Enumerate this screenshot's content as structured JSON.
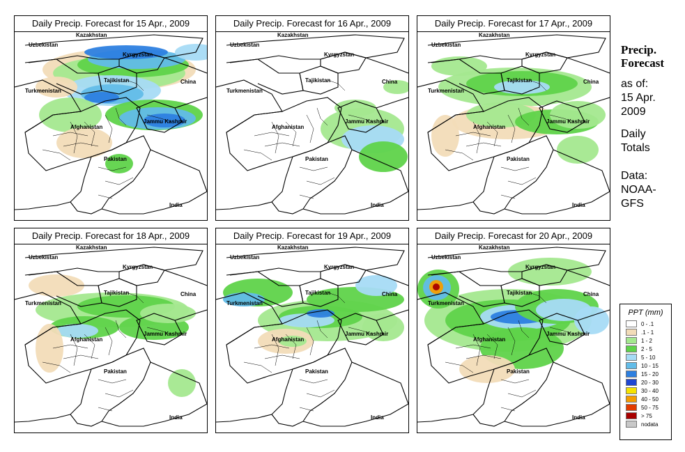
{
  "panels": [
    {
      "title": "Daily Precip. Forecast for  15 Apr., 2009",
      "day": 15
    },
    {
      "title": "Daily Precip. Forecast for  16 Apr., 2009",
      "day": 16
    },
    {
      "title": "Daily Precip. Forecast for  17 Apr., 2009",
      "day": 17
    },
    {
      "title": "Daily Precip. Forecast for  18 Apr., 2009",
      "day": 18
    },
    {
      "title": "Daily Precip. Forecast for  19 Apr., 2009",
      "day": 19
    },
    {
      "title": "Daily Precip. Forecast for  20 Apr., 2009",
      "day": 20
    }
  ],
  "map_labels": {
    "uzbekistan": "Uzbekistan",
    "kazakhstan": "Kazakhstan",
    "kyrgyzstan": "Kyrgyzstan",
    "tajikistan": "Tajikistan",
    "turkmenistan": "Turkmenistan",
    "china": "China",
    "afghanistan": "Afghanistan",
    "kashmir": "Jammu Kashmir",
    "pakistan": "Pakistan",
    "india": "India"
  },
  "side": {
    "title_line1": "Precip.",
    "title_line2": "Forecast",
    "asof_line1": "as of:",
    "asof_line2": "15 Apr.",
    "asof_line3": "2009",
    "totals_line1": "Daily",
    "totals_line2": "Totals",
    "data_line1": "Data:",
    "data_line2": "NOAA-",
    "data_line3": "GFS"
  },
  "legend": {
    "title": "PPT (mm)",
    "items": [
      {
        "label": "0 - .1",
        "color": "#ffffff"
      },
      {
        "label": ".1 - 1",
        "color": "#f2dcb8"
      },
      {
        "label": "1 - 2",
        "color": "#a4e88f"
      },
      {
        "label": "2 - 5",
        "color": "#5fd34a"
      },
      {
        "label": "5 - 10",
        "color": "#a6dbf5"
      },
      {
        "label": "10 - 15",
        "color": "#62bce8"
      },
      {
        "label": "15 - 20",
        "color": "#2d7fe0"
      },
      {
        "label": "20 - 30",
        "color": "#1f47d2"
      },
      {
        "label": "30 - 40",
        "color": "#f6e300"
      },
      {
        "label": "40 - 50",
        "color": "#f59d00"
      },
      {
        "label": "50 - 75",
        "color": "#e23b00"
      },
      {
        "label": "> 75",
        "color": "#a80000"
      },
      {
        "label": "nodata",
        "color": "#c8c8c8"
      }
    ]
  }
}
